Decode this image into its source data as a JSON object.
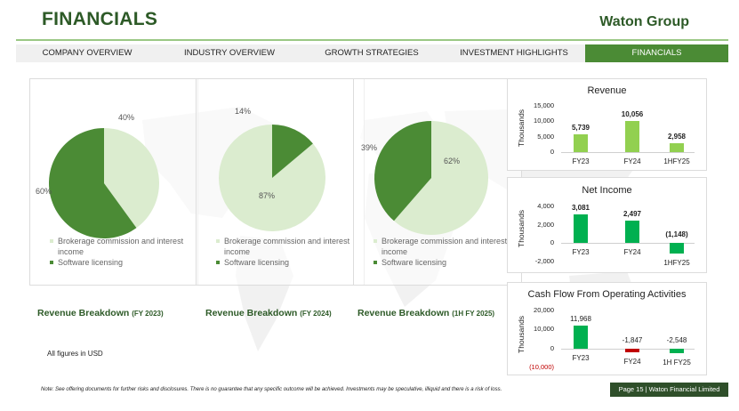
{
  "header": {
    "title": "FINANCIALS",
    "brand": "Waton Group"
  },
  "nav": {
    "tabs": [
      {
        "label": "COMPANY OVERVIEW",
        "active": false
      },
      {
        "label": "INDUSTRY OVERVIEW",
        "active": false
      },
      {
        "label": "GROWTH STRATEGIES",
        "active": false
      },
      {
        "label": "INVESTMENT HIGHLIGHTS",
        "active": false
      },
      {
        "label": "FINANCIALS",
        "active": true
      }
    ]
  },
  "colors": {
    "dark_green": "#4b8b35",
    "light_green": "#dbeccf",
    "bar_green": "#92d050",
    "bar_dark": "#00b050",
    "neg_red": "#c00000",
    "title_green": "#2d5a27"
  },
  "pies": [
    {
      "labels": {
        "light": "40%",
        "dark": "60%"
      },
      "slices": [
        {
          "name": "Brokerage commission and interest income",
          "percent": 40
        },
        {
          "name": "Software licensing",
          "percent": 60
        }
      ],
      "title_main": "Revenue Breakdown ",
      "title_sub": "(FY 2023)"
    },
    {
      "labels": {
        "light": "87%",
        "dark": "14%"
      },
      "slices": [
        {
          "name": "Brokerage commission and interest income",
          "percent": 87
        },
        {
          "name": "Software licensing",
          "percent": 14
        }
      ],
      "title_main": "Revenue Breakdown ",
      "title_sub": "(FY 2024)"
    },
    {
      "labels": {
        "light": "62%",
        "dark": "39%"
      },
      "slices": [
        {
          "name": "Brokerage commission and interest income",
          "percent": 62
        },
        {
          "name": "Software licensing",
          "percent": 39
        }
      ],
      "title_main": "Revenue Breakdown ",
      "title_sub": "(1H FY 2025)"
    }
  ],
  "legend": {
    "light_label": "Brokerage commission and interest income",
    "dark_label": "Software licensing"
  },
  "all_figures": "All figures in USD",
  "chart_data": [
    {
      "type": "bar",
      "title": "Revenue",
      "ylabel": "Thousands",
      "ylim": [
        0,
        15000
      ],
      "yticks": [
        "15,000",
        "10,000",
        "5,000",
        "0"
      ],
      "categories": [
        "FY23",
        "FY24",
        "1HFY25"
      ],
      "values": [
        5739,
        10056,
        2958
      ],
      "labels": [
        "5,739",
        "10,056",
        "2,958"
      ]
    },
    {
      "type": "bar",
      "title": "Net Income",
      "ylabel": "Thousands",
      "ylim": [
        -2000,
        4000
      ],
      "yticks": [
        "4,000",
        "2,000",
        "0",
        "-2,000"
      ],
      "categories": [
        "FY23",
        "FY24",
        "1HFY25"
      ],
      "values": [
        3081,
        2497,
        -1148
      ],
      "labels": [
        "3,081",
        "2,497",
        "(1,148)"
      ]
    },
    {
      "type": "bar",
      "title": "Cash Flow From Operating Activities",
      "ylabel": "Thousands",
      "ylim": [
        -10000,
        20000
      ],
      "yticks": [
        "20,000",
        "10,000",
        "0",
        "(10,000)"
      ],
      "categories": [
        "FY23",
        "FY24",
        "1H FY25"
      ],
      "values": [
        11968,
        -1847,
        -2548
      ],
      "labels": [
        "11,968",
        "-1,847",
        "-2,548"
      ]
    }
  ],
  "footer": {
    "note": "Note: See offering documents for further risks and disclosures. There is no guarantee that any specific outcome will be achieved. Investments may be speculative, illiquid and there is a risk of loss.",
    "page": "Page 15 | Waton Financial Limited"
  }
}
